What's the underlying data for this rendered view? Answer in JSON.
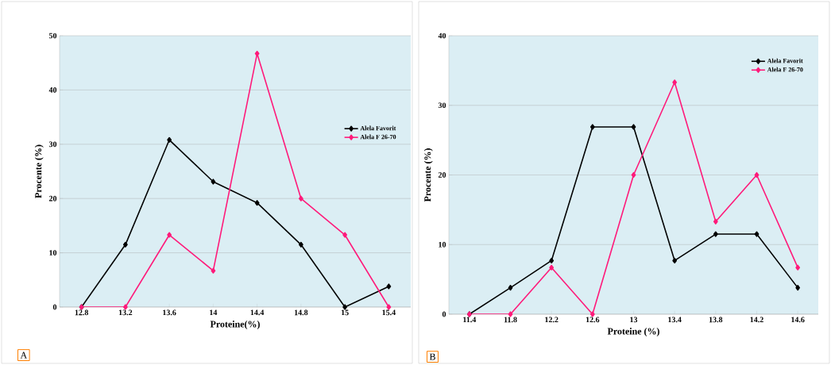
{
  "chart_data": [
    {
      "type": "line",
      "xlabel": "Proteine(%)",
      "ylabel": "Procente (%)",
      "categories": [
        "12.8",
        "13.2",
        "13.6",
        "14",
        "14.4",
        "14.8",
        "15",
        "15.4"
      ],
      "series": [
        {
          "name": "Alela Favorit",
          "color": "#000000",
          "values": [
            0,
            11.5,
            30.8,
            23.1,
            19.2,
            11.5,
            0,
            3.8
          ]
        },
        {
          "name": "Alela F 26-70",
          "color": "#ff1a7a",
          "values": [
            0,
            0,
            13.3,
            6.7,
            46.7,
            20,
            13.3,
            0
          ]
        }
      ],
      "ylim": [
        0,
        50
      ],
      "yticks": [
        0,
        10,
        20,
        30,
        40,
        50
      ],
      "grid": "y",
      "legend": "right",
      "marker": "diamond",
      "annotations": [
        "A"
      ]
    },
    {
      "type": "line",
      "xlabel": "Proteine (%)",
      "ylabel": "Procente (%)",
      "categories": [
        "11.4",
        "11.8",
        "12.2",
        "12.6",
        "13",
        "13.4",
        "13.8",
        "14.2",
        "14.6"
      ],
      "series": [
        {
          "name": "Alela Favorit",
          "color": "#000000",
          "values": [
            0,
            3.8,
            7.7,
            26.9,
            26.9,
            7.7,
            11.5,
            11.5,
            3.8
          ]
        },
        {
          "name": "Alela F 26-70",
          "color": "#ff1a7a",
          "values": [
            0,
            0,
            6.7,
            0,
            20,
            33.3,
            13.3,
            20,
            6.7
          ]
        }
      ],
      "ylim": [
        0,
        40
      ],
      "yticks": [
        0,
        10,
        20,
        30,
        40
      ],
      "grid": "y",
      "legend": "top right",
      "marker": "diamond",
      "annotations": [
        "B"
      ]
    }
  ]
}
